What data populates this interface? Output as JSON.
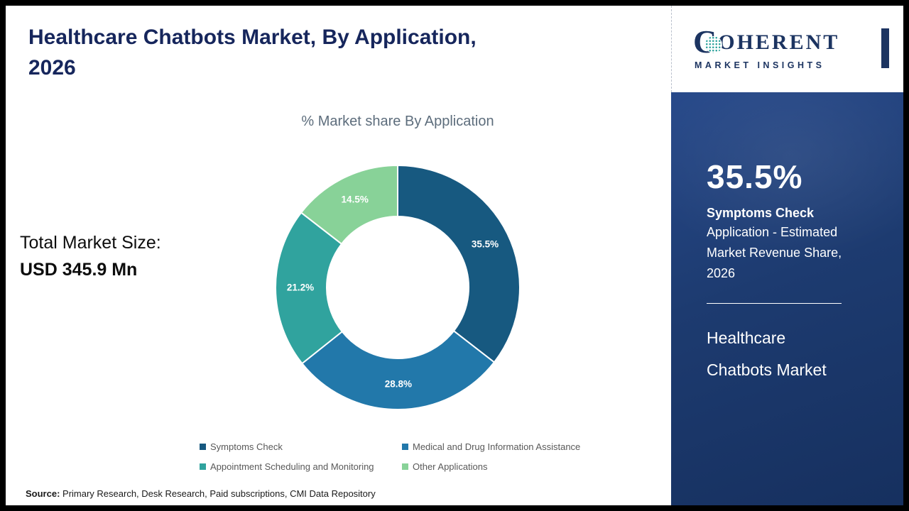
{
  "header": {
    "title_line1": "Healthcare Chatbots Market, By Application,",
    "title_line2": "2026"
  },
  "chart_data": {
    "type": "pie",
    "donut": true,
    "title": "% Market share By Application",
    "categories": [
      "Symptoms Check",
      "Medical and Drug Information Assistance",
      "Appointment Scheduling and Monitoring",
      "Other Applications"
    ],
    "values": [
      35.5,
      28.8,
      21.2,
      14.5
    ],
    "labels": [
      "35.5%",
      "28.8%",
      "21.2%",
      "14.5%"
    ],
    "colors": [
      "#175980",
      "#2278aa",
      "#30a39e",
      "#88d298"
    ],
    "legend_position": "bottom"
  },
  "market": {
    "label": "Total Market Size:",
    "value": "USD 345.9 Mn"
  },
  "source": {
    "label": "Source:",
    "text": " Primary Research, Desk Research, Paid subscriptions, CMI Data Repository"
  },
  "sidebar": {
    "logo": {
      "initial": "C",
      "name_rest": "OHERENT",
      "line2": "MARKET INSIGHTS",
      "brand_color": "#1c3461",
      "accent_color": "#2fa39d"
    },
    "stat_value": "35.5%",
    "stat_title": "Symptoms Check",
    "stat_desc": "Application - Estimated Market Revenue Share, 2026",
    "product": "Healthcare Chatbots Market",
    "background_color": "#1d3b70"
  }
}
